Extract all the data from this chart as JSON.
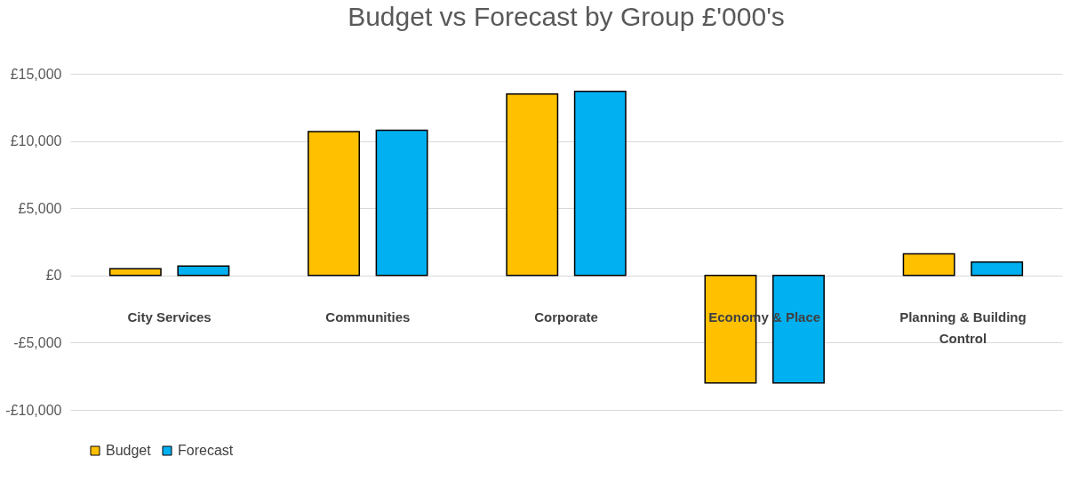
{
  "chart_data": {
    "type": "bar",
    "title": "Budget vs Forecast by Group £'000's",
    "categories": [
      "City Services",
      "Communities",
      "Corporate",
      "Economy & Place",
      "Planning & Building Control"
    ],
    "series": [
      {
        "name": "Budget",
        "color": "#ffc000",
        "values": [
          500,
          10700,
          13500,
          -8000,
          1600
        ]
      },
      {
        "name": "Forecast",
        "color": "#00b0f0",
        "values": [
          700,
          10800,
          13700,
          -8000,
          1000
        ]
      }
    ],
    "ylim": [
      -10000,
      15000
    ],
    "yticks": [
      {
        "value": -10000,
        "label": "-£10,000"
      },
      {
        "value": -5000,
        "label": "-£5,000"
      },
      {
        "value": 0,
        "label": "£0"
      },
      {
        "value": 5000,
        "label": "£5,000"
      },
      {
        "value": 10000,
        "label": "£10,000"
      },
      {
        "value": 15000,
        "label": "£15,000"
      }
    ],
    "grid": "y",
    "legend": "bottom"
  }
}
